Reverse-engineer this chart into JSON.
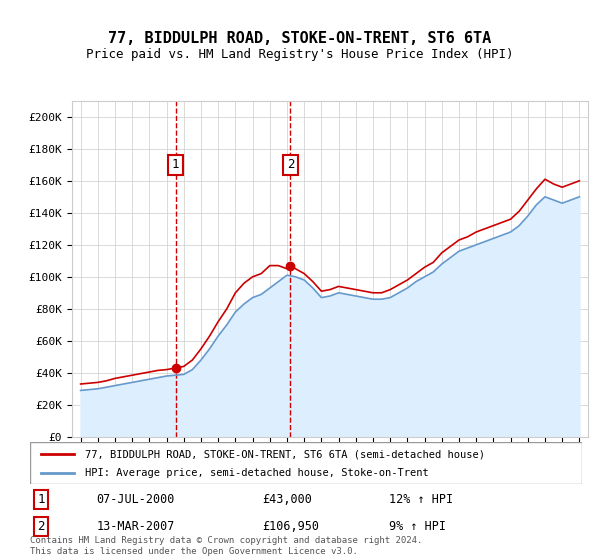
{
  "title": "77, BIDDULPH ROAD, STOKE-ON-TRENT, ST6 6TA",
  "subtitle": "Price paid vs. HM Land Registry's House Price Index (HPI)",
  "legend_line1": "77, BIDDULPH ROAD, STOKE-ON-TRENT, ST6 6TA (semi-detached house)",
  "legend_line2": "HPI: Average price, semi-detached house, Stoke-on-Trent",
  "footer": "Contains HM Land Registry data © Crown copyright and database right 2024.\nThis data is licensed under the Open Government Licence v3.0.",
  "sale1_date": "07-JUL-2000",
  "sale1_price": "£43,000",
  "sale1_hpi": "12% ↑ HPI",
  "sale2_date": "13-MAR-2007",
  "sale2_price": "£106,950",
  "sale2_hpi": "9% ↑ HPI",
  "red_color": "#cc0000",
  "blue_color": "#6699cc",
  "blue_fill": "#ddeeff",
  "background_color": "#ffffff",
  "sale1_year": 2000.52,
  "sale2_year": 2007.2,
  "ylim": [
    0,
    210000
  ],
  "yticks": [
    0,
    20000,
    40000,
    60000,
    80000,
    100000,
    120000,
    140000,
    160000,
    180000,
    200000
  ]
}
